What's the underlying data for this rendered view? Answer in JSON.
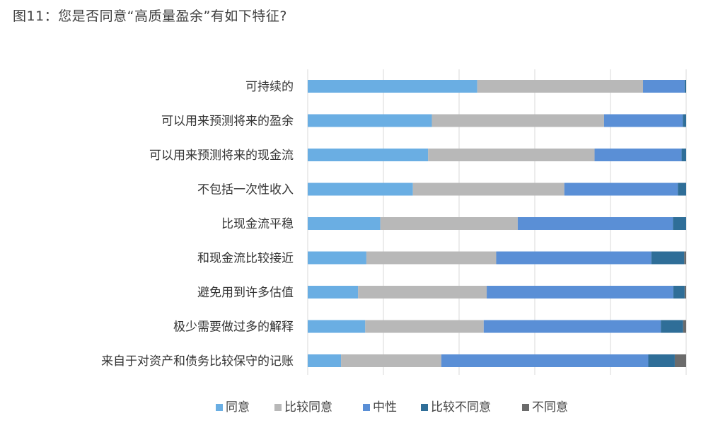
{
  "title": "图11：您是否同意“高质量盈余”有如下特征?",
  "chart_data": {
    "type": "bar",
    "orientation": "horizontal",
    "stacked": "percent",
    "categories": [
      "可持续的",
      "可以用来预测将来的盈余",
      "可以用来预测将来的现金流",
      "不包括一次性收入",
      "比现金流平稳",
      "和现金流比较接近",
      "避免用到许多估值",
      "极少需要做过多的解释",
      "来自于对资产和债务比较保守的记账"
    ],
    "series": [
      {
        "name": "同意",
        "color": "#6aaee3",
        "values": [
          44.8,
          32.8,
          31.8,
          27.8,
          19.2,
          15.5,
          13.3,
          15.2,
          8.8
        ]
      },
      {
        "name": "比较同意",
        "color": "#b8b8b8",
        "values": [
          43.8,
          45.5,
          44.0,
          40.0,
          36.3,
          34.3,
          34.0,
          31.3,
          26.5
        ]
      },
      {
        "name": "中性",
        "color": "#5a8fd6",
        "values": [
          11.0,
          20.8,
          23.0,
          30.0,
          41.0,
          41.0,
          49.3,
          46.8,
          54.7
        ]
      },
      {
        "name": "比较不同意",
        "color": "#2f6e98",
        "values": [
          0.4,
          0.9,
          1.2,
          2.2,
          3.5,
          8.7,
          3.0,
          5.9,
          7.0
        ]
      },
      {
        "name": "不同意",
        "color": "#6b6b6b",
        "values": [
          0.0,
          0.0,
          0.0,
          0.0,
          0.0,
          0.5,
          0.4,
          0.8,
          3.0
        ]
      }
    ],
    "xlim": [
      0,
      100
    ],
    "grid": true,
    "legend": "bottom"
  }
}
